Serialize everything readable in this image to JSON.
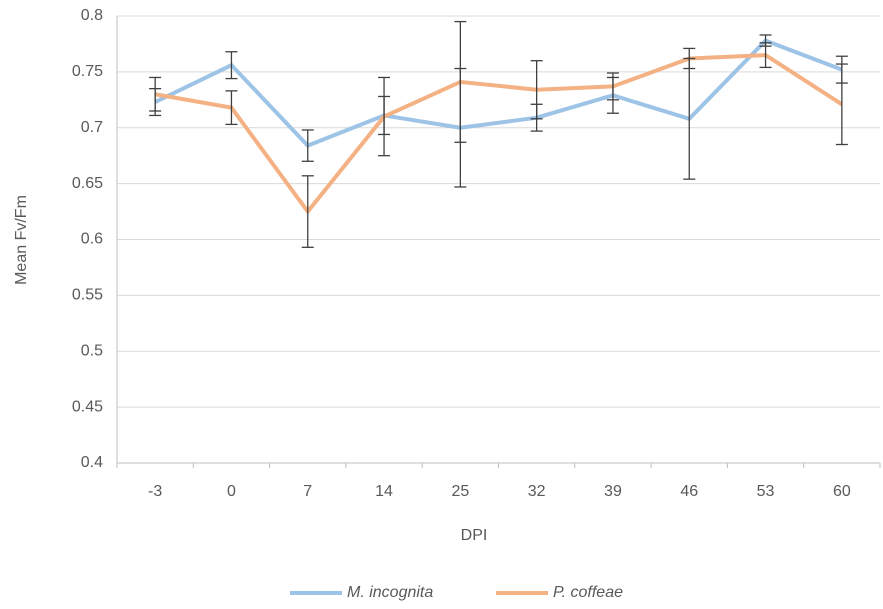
{
  "chart_data": {
    "type": "line",
    "x_label": "DPI",
    "y_label": "Mean Fv/Fm",
    "categories": [
      "-3",
      "0",
      "7",
      "14",
      "25",
      "32",
      "39",
      "46",
      "53",
      "60"
    ],
    "series": [
      {
        "name": "M. incognita",
        "color": "#9dc3e6",
        "values": [
          0.723,
          0.756,
          0.684,
          0.711,
          0.7,
          0.709,
          0.729,
          0.708,
          0.778,
          0.752
        ],
        "errors": [
          0.012,
          0.012,
          0.014,
          0.017,
          0.053,
          0.012,
          0.016,
          0.054,
          0.005,
          0.012
        ]
      },
      {
        "name": "P. coffeae",
        "color": "#f4b183",
        "values": [
          0.73,
          0.718,
          0.625,
          0.71,
          0.741,
          0.734,
          0.737,
          0.762,
          0.765,
          0.721
        ],
        "errors": [
          0.015,
          0.015,
          0.032,
          0.035,
          0.054,
          0.026,
          0.012,
          0.009,
          0.011,
          0.036
        ]
      }
    ],
    "ylim": [
      0.4,
      0.8
    ],
    "yticks": [
      0.4,
      0.45,
      0.5,
      0.55,
      0.6,
      0.65,
      0.7,
      0.75,
      0.8
    ],
    "grid": true,
    "legend": "bottom"
  }
}
